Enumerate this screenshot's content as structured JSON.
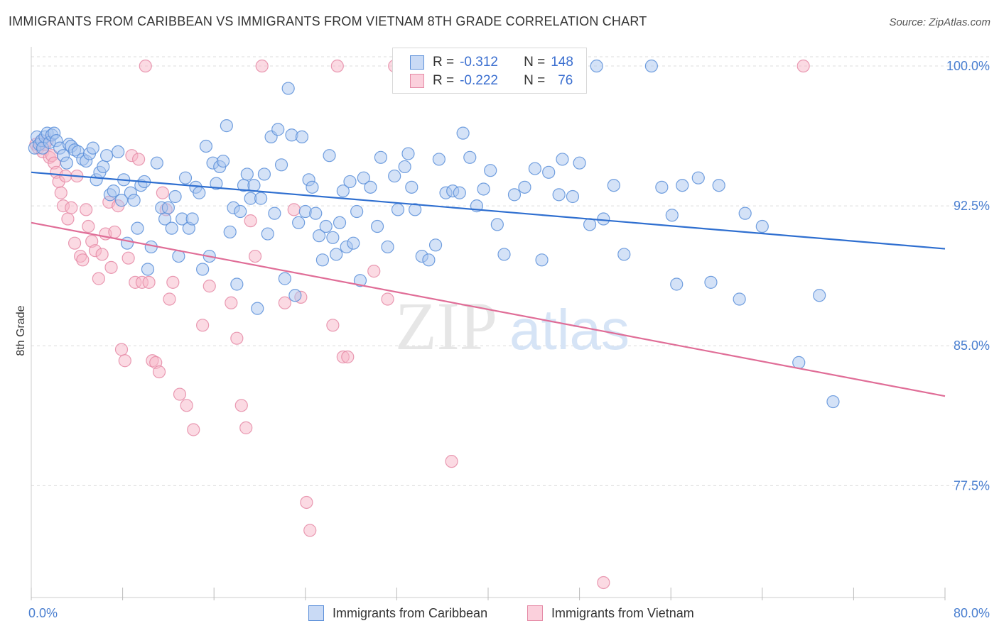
{
  "title": "IMMIGRANTS FROM CARIBBEAN VS IMMIGRANTS FROM VIETNAM 8TH GRADE CORRELATION CHART",
  "source": "Source: ZipAtlas.com",
  "watermark": {
    "zip": "ZIP",
    "atlas": "atlas"
  },
  "legend": {
    "r_label": "R =",
    "n_label": "N =",
    "rows": [
      {
        "r": "-0.312",
        "n": "148",
        "color": "#a9c6f0"
      },
      {
        "r": "-0.222",
        "n": "76",
        "color": "#f7b6c8"
      }
    ]
  },
  "bottom_legend": [
    {
      "label": "Immigrants from Caribbean",
      "color": "#a9c6f0"
    },
    {
      "label": "Immigrants from Vietnam",
      "color": "#f7b6c8"
    }
  ],
  "colors": {
    "caribbean_fill": "#a9c6f0",
    "caribbean_stroke": "#5b8fd9",
    "caribbean_line": "#2f6fd0",
    "vietnam_fill": "#f7b6c8",
    "vietnam_stroke": "#e58aa6",
    "vietnam_line": "#e06d97",
    "grid": "#dcdcdc",
    "tick_label": "#4a7fd0"
  },
  "chart_data": {
    "type": "scatter",
    "title": "IMMIGRANTS FROM CARIBBEAN VS IMMIGRANTS FROM VIETNAM 8TH GRADE CORRELATION CHART",
    "xlabel": "",
    "ylabel": "8th Grade",
    "xlim": [
      0,
      80
    ],
    "ylim": [
      71.5,
      100.8
    ],
    "x_tick_labels": [
      {
        "value": 0,
        "label": "0.0%"
      },
      {
        "value": 80,
        "label": "80.0%"
      }
    ],
    "y_tick_labels": [
      {
        "value": 100,
        "label": "100.0%"
      },
      {
        "value": 92.5,
        "label": "92.5%"
      },
      {
        "value": 85,
        "label": "85.0%"
      },
      {
        "value": 77.5,
        "label": "77.5%"
      }
    ],
    "grid": "horizontal dashed",
    "legend_position": "top-center",
    "series": [
      {
        "name": "Immigrants from Caribbean",
        "trend": {
          "x": [
            0,
            80
          ],
          "y": [
            94.3,
            90.2
          ]
        },
        "points": [
          [
            0.3,
            95.6
          ],
          [
            0.5,
            96.2
          ],
          [
            0.7,
            95.8
          ],
          [
            0.9,
            96.0
          ],
          [
            1.0,
            95.6
          ],
          [
            1.2,
            96.2
          ],
          [
            1.4,
            96.4
          ],
          [
            1.6,
            95.9
          ],
          [
            1.8,
            96.3
          ],
          [
            2.0,
            96.4
          ],
          [
            2.2,
            96.0
          ],
          [
            2.5,
            95.6
          ],
          [
            2.8,
            95.2
          ],
          [
            3.1,
            94.8
          ],
          [
            3.3,
            95.8
          ],
          [
            3.5,
            95.7
          ],
          [
            3.8,
            95.5
          ],
          [
            4.1,
            95.4
          ],
          [
            4.5,
            95.0
          ],
          [
            4.8,
            94.9
          ],
          [
            5.1,
            95.3
          ],
          [
            5.4,
            95.6
          ],
          [
            5.7,
            93.9
          ],
          [
            6.0,
            94.3
          ],
          [
            6.3,
            94.6
          ],
          [
            6.6,
            95.2
          ],
          [
            6.9,
            93.1
          ],
          [
            7.2,
            93.3
          ],
          [
            7.6,
            95.4
          ],
          [
            7.9,
            92.8
          ],
          [
            8.1,
            93.9
          ],
          [
            8.4,
            90.5
          ],
          [
            8.7,
            93.2
          ],
          [
            9.0,
            92.8
          ],
          [
            9.3,
            91.3
          ],
          [
            9.6,
            93.6
          ],
          [
            9.9,
            93.8
          ],
          [
            10.2,
            89.1
          ],
          [
            10.5,
            90.3
          ],
          [
            11.0,
            94.8
          ],
          [
            11.4,
            92.4
          ],
          [
            11.7,
            91.8
          ],
          [
            12.0,
            92.4
          ],
          [
            12.3,
            91.3
          ],
          [
            12.6,
            93.0
          ],
          [
            12.9,
            89.8
          ],
          [
            13.2,
            91.8
          ],
          [
            13.5,
            94.0
          ],
          [
            13.8,
            91.3
          ],
          [
            14.1,
            91.8
          ],
          [
            14.4,
            93.5
          ],
          [
            14.7,
            93.2
          ],
          [
            15.0,
            89.1
          ],
          [
            15.3,
            95.7
          ],
          [
            15.6,
            89.8
          ],
          [
            15.9,
            94.8
          ],
          [
            16.2,
            93.7
          ],
          [
            16.5,
            94.6
          ],
          [
            16.8,
            94.9
          ],
          [
            17.1,
            96.8
          ],
          [
            17.4,
            91.1
          ],
          [
            17.7,
            92.4
          ],
          [
            18.0,
            88.3
          ],
          [
            18.3,
            92.2
          ],
          [
            18.6,
            93.6
          ],
          [
            18.9,
            94.2
          ],
          [
            19.2,
            92.9
          ],
          [
            19.5,
            93.6
          ],
          [
            19.8,
            87.0
          ],
          [
            20.1,
            92.9
          ],
          [
            20.4,
            94.2
          ],
          [
            20.7,
            91.0
          ],
          [
            21.0,
            96.2
          ],
          [
            21.3,
            92.1
          ],
          [
            21.6,
            96.6
          ],
          [
            21.9,
            94.7
          ],
          [
            22.2,
            88.6
          ],
          [
            22.5,
            98.8
          ],
          [
            22.8,
            96.3
          ],
          [
            23.1,
            87.7
          ],
          [
            23.4,
            91.6
          ],
          [
            23.7,
            96.2
          ],
          [
            24.0,
            92.2
          ],
          [
            24.3,
            93.9
          ],
          [
            24.6,
            93.5
          ],
          [
            24.9,
            92.1
          ],
          [
            25.2,
            90.9
          ],
          [
            25.5,
            89.6
          ],
          [
            25.8,
            91.4
          ],
          [
            26.1,
            95.2
          ],
          [
            26.4,
            90.8
          ],
          [
            26.7,
            89.9
          ],
          [
            27.0,
            91.6
          ],
          [
            27.3,
            93.3
          ],
          [
            27.6,
            90.3
          ],
          [
            27.9,
            93.8
          ],
          [
            28.2,
            90.5
          ],
          [
            28.5,
            92.2
          ],
          [
            28.8,
            88.5
          ],
          [
            29.1,
            94.0
          ],
          [
            29.7,
            93.5
          ],
          [
            30.3,
            91.4
          ],
          [
            30.6,
            95.1
          ],
          [
            31.2,
            90.3
          ],
          [
            31.8,
            94.1
          ],
          [
            32.1,
            92.3
          ],
          [
            32.7,
            94.6
          ],
          [
            33.0,
            95.3
          ],
          [
            33.3,
            93.5
          ],
          [
            33.6,
            92.3
          ],
          [
            34.2,
            89.8
          ],
          [
            34.8,
            89.6
          ],
          [
            35.4,
            90.4
          ],
          [
            35.7,
            95.0
          ],
          [
            36.3,
            93.2
          ],
          [
            36.9,
            93.3
          ],
          [
            37.5,
            93.2
          ],
          [
            37.8,
            96.4
          ],
          [
            38.4,
            95.1
          ],
          [
            39.0,
            92.5
          ],
          [
            39.6,
            93.4
          ],
          [
            40.2,
            94.4
          ],
          [
            40.8,
            91.5
          ],
          [
            41.4,
            89.9
          ],
          [
            42.3,
            93.1
          ],
          [
            43.2,
            93.5
          ],
          [
            44.1,
            94.5
          ],
          [
            44.7,
            89.6
          ],
          [
            45.3,
            94.3
          ],
          [
            46.2,
            93.1
          ],
          [
            46.5,
            95.0
          ],
          [
            47.4,
            93.0
          ],
          [
            48.0,
            94.8
          ],
          [
            48.9,
            91.5
          ],
          [
            49.5,
            100.0
          ],
          [
            50.1,
            91.8
          ],
          [
            51.0,
            93.6
          ],
          [
            51.9,
            89.9
          ],
          [
            54.3,
            100.0
          ],
          [
            55.2,
            93.5
          ],
          [
            56.1,
            92.0
          ],
          [
            57.0,
            93.6
          ],
          [
            58.4,
            94.0
          ],
          [
            59.5,
            88.4
          ],
          [
            60.2,
            93.6
          ],
          [
            62.0,
            87.5
          ],
          [
            62.5,
            92.1
          ],
          [
            64.0,
            91.4
          ],
          [
            67.2,
            84.1
          ],
          [
            69.0,
            87.7
          ],
          [
            70.2,
            82.0
          ],
          [
            56.5,
            88.3
          ]
        ]
      },
      {
        "name": "Immigrants from Vietnam",
        "trend": {
          "x": [
            0,
            80
          ],
          "y": [
            91.6,
            82.3
          ]
        },
        "points": [
          [
            0.4,
            95.8
          ],
          [
            0.6,
            95.6
          ],
          [
            0.8,
            95.9
          ],
          [
            1.0,
            95.4
          ],
          [
            1.2,
            95.8
          ],
          [
            1.4,
            96.0
          ],
          [
            1.6,
            95.1
          ],
          [
            1.8,
            95.2
          ],
          [
            2.0,
            94.8
          ],
          [
            2.2,
            94.3
          ],
          [
            2.4,
            93.8
          ],
          [
            2.6,
            93.2
          ],
          [
            2.8,
            92.5
          ],
          [
            3.0,
            94.1
          ],
          [
            3.2,
            91.8
          ],
          [
            3.5,
            92.4
          ],
          [
            3.8,
            90.5
          ],
          [
            4.0,
            94.1
          ],
          [
            4.3,
            89.8
          ],
          [
            4.5,
            89.6
          ],
          [
            4.8,
            92.3
          ],
          [
            5.0,
            91.4
          ],
          [
            5.3,
            90.6
          ],
          [
            5.6,
            90.1
          ],
          [
            5.9,
            88.6
          ],
          [
            6.2,
            89.9
          ],
          [
            6.5,
            91.0
          ],
          [
            6.8,
            92.7
          ],
          [
            7.0,
            89.2
          ],
          [
            7.3,
            91.1
          ],
          [
            7.6,
            92.5
          ],
          [
            7.9,
            84.8
          ],
          [
            8.2,
            84.2
          ],
          [
            8.5,
            89.7
          ],
          [
            8.8,
            95.2
          ],
          [
            9.1,
            88.4
          ],
          [
            9.4,
            95.0
          ],
          [
            9.7,
            88.4
          ],
          [
            10.0,
            100.0
          ],
          [
            10.3,
            88.4
          ],
          [
            10.6,
            84.2
          ],
          [
            10.9,
            84.1
          ],
          [
            11.2,
            83.6
          ],
          [
            11.5,
            93.2
          ],
          [
            11.8,
            92.3
          ],
          [
            12.1,
            87.5
          ],
          [
            12.4,
            88.4
          ],
          [
            13.0,
            82.4
          ],
          [
            13.6,
            81.8
          ],
          [
            14.2,
            80.5
          ],
          [
            15.0,
            86.1
          ],
          [
            15.6,
            88.2
          ],
          [
            17.5,
            87.3
          ],
          [
            18.0,
            85.4
          ],
          [
            18.4,
            81.8
          ],
          [
            18.8,
            80.6
          ],
          [
            19.2,
            91.7
          ],
          [
            19.6,
            89.8
          ],
          [
            20.2,
            100.0
          ],
          [
            22.2,
            87.3
          ],
          [
            23.0,
            92.3
          ],
          [
            23.6,
            87.6
          ],
          [
            24.1,
            76.6
          ],
          [
            24.4,
            75.1
          ],
          [
            26.4,
            86.1
          ],
          [
            26.8,
            100.0
          ],
          [
            27.3,
            84.4
          ],
          [
            27.7,
            84.4
          ],
          [
            30.0,
            89.0
          ],
          [
            31.2,
            87.5
          ],
          [
            31.8,
            100.0
          ],
          [
            34.0,
            100.0
          ],
          [
            35.5,
            100.0
          ],
          [
            36.8,
            78.8
          ],
          [
            50.1,
            72.3
          ],
          [
            67.6,
            100.0
          ]
        ]
      }
    ]
  }
}
